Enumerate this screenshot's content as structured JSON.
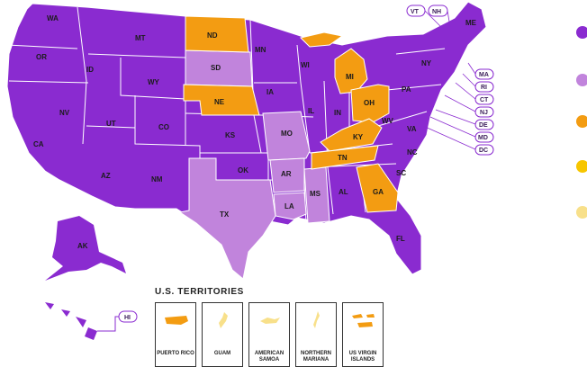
{
  "colors": {
    "purple": "#8a2bd0",
    "light_purple": "#c184dc",
    "orange": "#f39c12",
    "yellow": "#f7c600",
    "light_yellow": "#f8e08a"
  },
  "states": {
    "WA": "WA",
    "OR": "OR",
    "CA": "CA",
    "ID": "ID",
    "NV": "NV",
    "MT": "MT",
    "WY": "WY",
    "UT": "UT",
    "AZ": "AZ",
    "CO": "CO",
    "NM": "NM",
    "ND": "ND",
    "SD": "SD",
    "NE": "NE",
    "KS": "KS",
    "OK": "OK",
    "TX": "TX",
    "MN": "MN",
    "IA": "IA",
    "MO": "MO",
    "AR": "AR",
    "LA": "LA",
    "WI": "WI",
    "IL": "IL",
    "MS": "MS",
    "MI": "MI",
    "IN": "IN",
    "KY": "KY",
    "TN": "TN",
    "AL": "AL",
    "OH": "OH",
    "GA": "GA",
    "FL": "FL",
    "SC": "SC",
    "NC": "NC",
    "VA": "VA",
    "WV": "WV",
    "PA": "PA",
    "NY": "NY",
    "ME": "ME",
    "AK": "AK",
    "HI": "HI"
  },
  "badges": {
    "VT": "VT",
    "NH": "NH",
    "MA": "MA",
    "RI": "RI",
    "CT": "CT",
    "NJ": "NJ",
    "DE": "DE",
    "MD": "MD",
    "DC": "DC",
    "HI": "HI"
  },
  "territories": {
    "title": "U.S. TERRITORIES",
    "items": [
      {
        "name": "PUERTO RICO",
        "fill": "orange"
      },
      {
        "name": "GUAM",
        "fill": "light_yellow"
      },
      {
        "name": "AMERICAN SAMOA",
        "fill": "light_yellow"
      },
      {
        "name": "NORTHERN MARIANA",
        "fill": "light_yellow"
      },
      {
        "name": "US VIRGIN ISLANDS",
        "fill": "orange"
      }
    ]
  },
  "legend": [
    {
      "color": "purple"
    },
    {
      "color": "light_purple"
    },
    {
      "color": "orange"
    },
    {
      "color": "yellow"
    },
    {
      "color": "light_yellow"
    }
  ]
}
